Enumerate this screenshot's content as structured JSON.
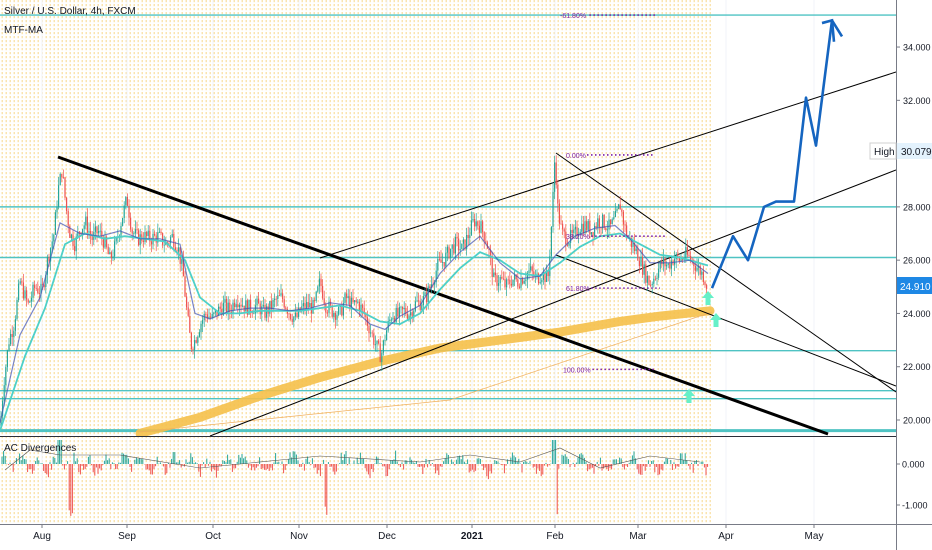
{
  "header": {
    "symbol_line": "Silver / U.S. Dollar, 4h, FXCM",
    "indicator_label": "MTF-MA",
    "oscillator_label": "AC Divergences"
  },
  "chart_data": {
    "type": "line",
    "main_panel": {
      "price_range": [
        19.5,
        35.5
      ],
      "price_ticks": [
        "20.000",
        "22.000",
        "24.000",
        "26.000",
        "28.000",
        "30.000",
        "32.000",
        "34.000"
      ],
      "current_price": "24.910",
      "high_label": "High",
      "high_value": "30.079",
      "horizontal_levels": [
        35.2,
        28.0,
        26.1,
        22.6,
        21.1,
        20.8,
        19.6
      ],
      "fibonacci": [
        {
          "label": "-61.80%",
          "price": 35.2
        },
        {
          "label": "0.00%",
          "price": 29.95
        },
        {
          "label": "38.20%",
          "price": 26.9
        },
        {
          "label": "61.80%",
          "price": 24.95
        },
        {
          "label": "100.00%",
          "price": 21.9
        }
      ],
      "price_series": [
        [
          0,
          19.7
        ],
        [
          4,
          21.5
        ],
        [
          9,
          23.0
        ],
        [
          14,
          23.6
        ],
        [
          20,
          25.2
        ],
        [
          28,
          24.3
        ],
        [
          35,
          25.0
        ],
        [
          42,
          24.8
        ],
        [
          48,
          26.1
        ],
        [
          54,
          27.0
        ],
        [
          58,
          28.6
        ],
        [
          62,
          29.4
        ],
        [
          66,
          28.0
        ],
        [
          70,
          27.0
        ],
        [
          75,
          26.6
        ],
        [
          80,
          27.2
        ],
        [
          86,
          27.4
        ],
        [
          92,
          26.8
        ],
        [
          98,
          27.1
        ],
        [
          104,
          26.7
        ],
        [
          110,
          26.0
        ],
        [
          116,
          26.6
        ],
        [
          122,
          27.6
        ],
        [
          127,
          28.3
        ],
        [
          132,
          27.1
        ],
        [
          138,
          26.8
        ],
        [
          144,
          26.9
        ],
        [
          150,
          26.8
        ],
        [
          158,
          26.9
        ],
        [
          166,
          26.6
        ],
        [
          172,
          26.9
        ],
        [
          178,
          26.5
        ],
        [
          183,
          25.5
        ],
        [
          187,
          24.0
        ],
        [
          191,
          22.8
        ],
        [
          195,
          23.0
        ],
        [
          200,
          23.6
        ],
        [
          206,
          24.0
        ],
        [
          212,
          23.8
        ],
        [
          218,
          24.1
        ],
        [
          224,
          24.3
        ],
        [
          230,
          24.1
        ],
        [
          236,
          24.6
        ],
        [
          244,
          24.3
        ],
        [
          250,
          24.2
        ],
        [
          258,
          24.3
        ],
        [
          264,
          24.0
        ],
        [
          270,
          24.2
        ],
        [
          276,
          24.5
        ],
        [
          282,
          24.6
        ],
        [
          290,
          24.0
        ],
        [
          296,
          23.8
        ],
        [
          302,
          24.2
        ],
        [
          308,
          24.3
        ],
        [
          314,
          24.2
        ],
        [
          320,
          25.2
        ],
        [
          326,
          24.3
        ],
        [
          332,
          24.1
        ],
        [
          340,
          24.0
        ],
        [
          346,
          24.6
        ],
        [
          352,
          24.3
        ],
        [
          358,
          24.4
        ],
        [
          364,
          24.0
        ],
        [
          370,
          23.4
        ],
        [
          376,
          22.8
        ],
        [
          381,
          22.4
        ],
        [
          386,
          23.3
        ],
        [
          392,
          24.0
        ],
        [
          398,
          23.9
        ],
        [
          404,
          24.1
        ],
        [
          410,
          24.0
        ],
        [
          416,
          24.4
        ],
        [
          420,
          24.4
        ],
        [
          426,
          24.6
        ],
        [
          432,
          25.2
        ],
        [
          438,
          25.8
        ],
        [
          444,
          26.0
        ],
        [
          450,
          26.4
        ],
        [
          456,
          26.6
        ],
        [
          462,
          26.4
        ],
        [
          468,
          26.9
        ],
        [
          474,
          27.5
        ],
        [
          480,
          27.3
        ],
        [
          486,
          26.8
        ],
        [
          490,
          26.1
        ],
        [
          494,
          25.2
        ],
        [
          500,
          25.3
        ],
        [
          506,
          25.0
        ],
        [
          512,
          25.3
        ],
        [
          518,
          25.2
        ],
        [
          524,
          25.4
        ],
        [
          530,
          25.6
        ],
        [
          536,
          25.3
        ],
        [
          542,
          25.5
        ],
        [
          548,
          25.3
        ],
        [
          552,
          27.6
        ],
        [
          555,
          30.0
        ],
        [
          558,
          27.8
        ],
        [
          562,
          27.0
        ],
        [
          568,
          26.8
        ],
        [
          574,
          26.9
        ],
        [
          580,
          27.3
        ],
        [
          586,
          27.3
        ],
        [
          592,
          27.1
        ],
        [
          598,
          27.5
        ],
        [
          604,
          27.4
        ],
        [
          610,
          27.2
        ],
        [
          616,
          27.6
        ],
        [
          620,
          28.1
        ],
        [
          626,
          27.0
        ],
        [
          632,
          26.6
        ],
        [
          638,
          26.2
        ],
        [
          644,
          25.6
        ],
        [
          650,
          25.1
        ],
        [
          656,
          25.5
        ],
        [
          662,
          25.9
        ],
        [
          668,
          25.8
        ],
        [
          674,
          26.1
        ],
        [
          680,
          26.0
        ],
        [
          686,
          26.2
        ],
        [
          692,
          26.0
        ],
        [
          698,
          25.7
        ],
        [
          704,
          25.4
        ],
        [
          708,
          24.91
        ]
      ],
      "ma_fast": [
        [
          0,
          19.9
        ],
        [
          20,
          23.2
        ],
        [
          40,
          24.6
        ],
        [
          60,
          27.4
        ],
        [
          80,
          27.0
        ],
        [
          100,
          26.9
        ],
        [
          120,
          27.1
        ],
        [
          140,
          26.8
        ],
        [
          160,
          26.8
        ],
        [
          180,
          26.6
        ],
        [
          195,
          24.0
        ],
        [
          210,
          23.8
        ],
        [
          230,
          24.1
        ],
        [
          250,
          24.2
        ],
        [
          270,
          24.2
        ],
        [
          290,
          24.1
        ],
        [
          310,
          24.2
        ],
        [
          330,
          24.4
        ],
        [
          350,
          24.3
        ],
        [
          370,
          23.6
        ],
        [
          385,
          23.4
        ],
        [
          400,
          23.9
        ],
        [
          420,
          24.3
        ],
        [
          440,
          25.5
        ],
        [
          460,
          26.3
        ],
        [
          480,
          26.9
        ],
        [
          500,
          25.9
        ],
        [
          520,
          25.3
        ],
        [
          540,
          25.4
        ],
        [
          556,
          26.2
        ],
        [
          575,
          26.9
        ],
        [
          595,
          27.2
        ],
        [
          615,
          27.3
        ],
        [
          630,
          26.8
        ],
        [
          650,
          25.9
        ],
        [
          670,
          25.9
        ],
        [
          690,
          26.0
        ],
        [
          708,
          25.5
        ]
      ],
      "ma_slow": [
        [
          0,
          19.6
        ],
        [
          25,
          22.4
        ],
        [
          45,
          24.2
        ],
        [
          65,
          26.6
        ],
        [
          85,
          27.0
        ],
        [
          105,
          26.8
        ],
        [
          125,
          26.9
        ],
        [
          145,
          26.8
        ],
        [
          165,
          26.7
        ],
        [
          185,
          26.0
        ],
        [
          200,
          24.6
        ],
        [
          220,
          24.0
        ],
        [
          240,
          24.0
        ],
        [
          260,
          24.1
        ],
        [
          280,
          24.1
        ],
        [
          300,
          24.1
        ],
        [
          320,
          24.2
        ],
        [
          340,
          24.3
        ],
        [
          360,
          24.1
        ],
        [
          380,
          23.7
        ],
        [
          400,
          23.6
        ],
        [
          420,
          24.0
        ],
        [
          440,
          24.9
        ],
        [
          460,
          25.7
        ],
        [
          480,
          26.3
        ],
        [
          500,
          26.0
        ],
        [
          520,
          25.5
        ],
        [
          540,
          25.4
        ],
        [
          560,
          25.9
        ],
        [
          580,
          26.5
        ],
        [
          600,
          26.9
        ],
        [
          620,
          27.0
        ],
        [
          640,
          26.6
        ],
        [
          660,
          26.2
        ],
        [
          680,
          26.1
        ],
        [
          708,
          25.8
        ]
      ],
      "ma_long": [
        [
          140,
          19.5
        ],
        [
          200,
          20.1
        ],
        [
          260,
          20.9
        ],
        [
          320,
          21.6
        ],
        [
          380,
          22.2
        ],
        [
          440,
          22.7
        ],
        [
          500,
          23.0
        ],
        [
          560,
          23.3
        ],
        [
          620,
          23.7
        ],
        [
          660,
          23.9
        ],
        [
          710,
          24.1
        ]
      ],
      "projection": [
        [
          712,
          24.95
        ],
        [
          733,
          26.9
        ],
        [
          748,
          26.0
        ],
        [
          764,
          28.0
        ],
        [
          776,
          28.2
        ],
        [
          794,
          28.2
        ],
        [
          806,
          32.1
        ],
        [
          816,
          30.3
        ],
        [
          832,
          35.0
        ],
        [
          842,
          34.4
        ]
      ]
    },
    "oscillator_panel": {
      "ticks": [
        "0.000",
        "-1.000"
      ]
    },
    "x_tick_labels": [
      "Aug",
      "Sep",
      "Oct",
      "Nov",
      "Dec",
      "2021",
      "Feb",
      "Mar",
      "Apr",
      "May"
    ]
  },
  "colors": {
    "candle_up": "#26a69a",
    "candle_down": "#ef5350",
    "level_line": "#4fc3c3",
    "ma_fast": "#3f51b5",
    "ma_slow": "#4dd0c8",
    "ma_long": "#f5c04a",
    "projection": "#1565c0",
    "fib": "#7b1fa2",
    "trendline": "#000000",
    "arrow": "#66f0c8",
    "background_dots": "#f3c24d"
  }
}
